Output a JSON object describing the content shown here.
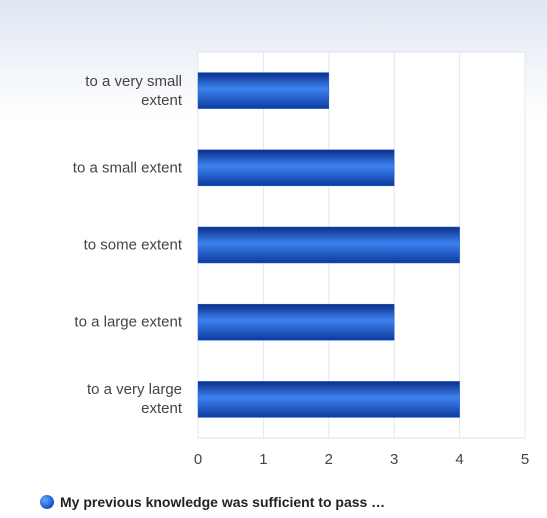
{
  "chart_data": {
    "type": "hbar",
    "categories": [
      "to a very small extent",
      "to a small extent",
      "to some extent",
      "to a large extent",
      "to a very large extent"
    ],
    "series": [
      {
        "name": "My previous knowledge was sufficient to pass …",
        "color": "#1f5fd0",
        "values": [
          2,
          3,
          4,
          3,
          4
        ]
      }
    ],
    "xlim": [
      0,
      5
    ],
    "xticks": [
      0,
      1,
      2,
      3,
      4,
      5
    ],
    "grid": true,
    "legend": "bottom"
  }
}
